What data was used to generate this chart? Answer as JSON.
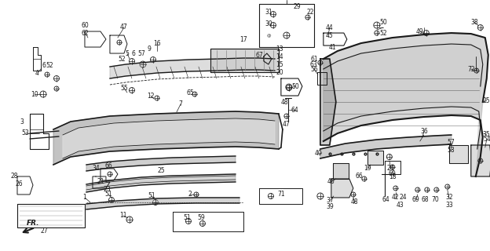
{
  "bg_color": "#ffffff",
  "line_color": "#1a1a1a",
  "fig_width": 6.24,
  "fig_height": 3.2,
  "dpi": 100,
  "gray_fill": "#aaaaaa",
  "dark_fill": "#555555",
  "light_fill": "#cccccc"
}
